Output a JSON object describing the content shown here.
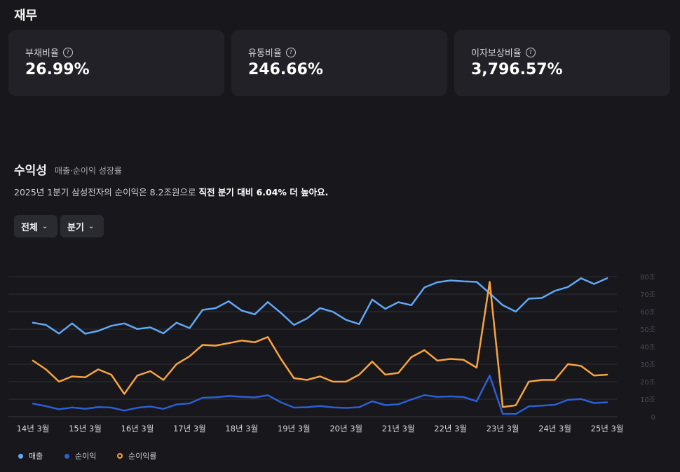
{
  "finance": {
    "title": "재무",
    "cards": [
      {
        "label": "부채비율",
        "value": "26.99%"
      },
      {
        "label": "유동비율",
        "value": "246.66%"
      },
      {
        "label": "이자보상비율",
        "value": "3,796.57%"
      }
    ],
    "help_glyph": "?"
  },
  "profitability": {
    "title": "수익성",
    "subtitle": "매출·순이익 성장률",
    "summary_prefix": "2025년 1분기 삼성전자의 순이익은 8.2조원으로 ",
    "summary_bold": "직전 분기 대비 6.04% 더 높아요.",
    "filter_scope": "전체",
    "filter_period": "분기",
    "chevron_glyph": "⌄"
  },
  "chart_data": {
    "type": "line",
    "title": "",
    "x_tick_labels": [
      "14년 3월",
      "15년 3월",
      "16년 3월",
      "17년 3월",
      "18년 3월",
      "19년 3월",
      "20년 3월",
      "21년 3월",
      "22년 3월",
      "23년 3월",
      "24년 3월",
      "25년 3월"
    ],
    "y_tick_labels": [
      "0",
      "10조",
      "20조",
      "30조",
      "40조",
      "50조",
      "60조",
      "70조",
      "80조"
    ],
    "ylim": [
      0,
      80
    ],
    "n_points": 45,
    "series": [
      {
        "name": "매출",
        "color": "#60a8f6",
        "values": [
          53.7,
          52.4,
          47.5,
          53.3,
          47.4,
          49.0,
          51.9,
          53.3,
          50.1,
          51.0,
          47.6,
          53.7,
          50.6,
          61.0,
          62.0,
          65.9,
          60.6,
          58.5,
          65.5,
          59.3,
          52.4,
          56.1,
          62.0,
          59.9,
          55.3,
          52.9,
          66.9,
          61.6,
          65.4,
          63.7,
          73.8,
          76.8,
          77.8,
          77.3,
          77.0,
          70.5,
          63.7,
          60.0,
          67.4,
          67.8,
          71.9,
          74.1,
          79.1,
          75.8,
          79.1
        ]
      },
      {
        "name": "순이익",
        "color": "#2c5fd4",
        "values": [
          7.5,
          6.0,
          4.2,
          5.3,
          4.5,
          5.5,
          5.2,
          3.5,
          5.1,
          5.8,
          4.5,
          7.0,
          7.6,
          10.8,
          11.1,
          11.8,
          11.4,
          11.0,
          12.3,
          8.2,
          5.2,
          5.4,
          6.1,
          5.3,
          5.0,
          5.4,
          8.8,
          6.6,
          7.1,
          9.8,
          12.3,
          11.3,
          11.6,
          11.2,
          8.8,
          23.5,
          1.6,
          1.5,
          5.9,
          6.3,
          6.8,
          9.6,
          10.1,
          7.8,
          8.2
        ]
      },
      {
        "name": "순이익률",
        "color": "#f7a440",
        "values": [
          32.0,
          27.0,
          20.0,
          23.0,
          22.5,
          27.0,
          24.0,
          13.0,
          23.5,
          26.0,
          21.0,
          30.0,
          34.5,
          41.0,
          40.6,
          42.0,
          43.5,
          42.5,
          45.5,
          33.0,
          22.0,
          21.0,
          23.0,
          20.0,
          20.0,
          24.0,
          31.5,
          24.0,
          25.0,
          34.0,
          38.0,
          32.0,
          33.0,
          32.5,
          28.0,
          77.0,
          5.5,
          6.5,
          20.0,
          21.0,
          21.0,
          30.0,
          29.0,
          23.5,
          24.0
        ]
      }
    ]
  }
}
